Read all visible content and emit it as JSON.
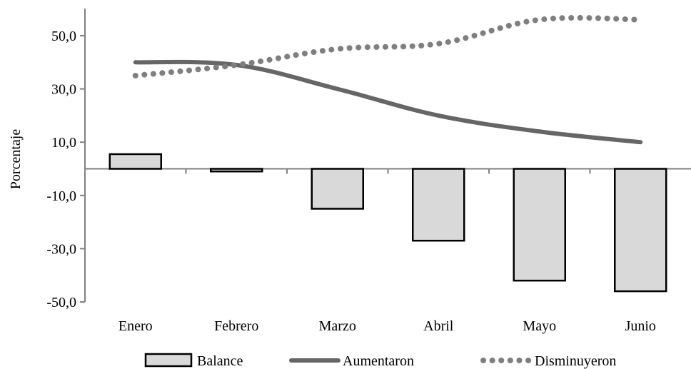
{
  "chart_data": {
    "type": "bar",
    "ylabel": "Porcentaje",
    "ylim": [
      -50,
      50
    ],
    "yticks": [
      50,
      30,
      10,
      -10,
      -30,
      -50
    ],
    "ytick_labels": [
      "50,0",
      "30,0",
      "10,0",
      "-10,0",
      "-30,0",
      "-50,0"
    ],
    "categories": [
      "Enero",
      "Febrero",
      "Marzo",
      "Abril",
      "Mayo",
      "Junio"
    ],
    "series": [
      {
        "name": "Balance",
        "kind": "bar",
        "color": "#d9d9d9",
        "values": [
          5.5,
          -1,
          -15,
          -27,
          -42,
          -46
        ]
      },
      {
        "name": "Aumentaron",
        "kind": "line",
        "color": "#666666",
        "style": "solid",
        "values": [
          40,
          39,
          30,
          20,
          14,
          10
        ]
      },
      {
        "name": "Disminuyeron",
        "kind": "line",
        "color": "#7f7f7f",
        "style": "dotted",
        "values": [
          35,
          39,
          45,
          47,
          56,
          56
        ]
      }
    ],
    "grid": false,
    "legend_position": "bottom"
  }
}
